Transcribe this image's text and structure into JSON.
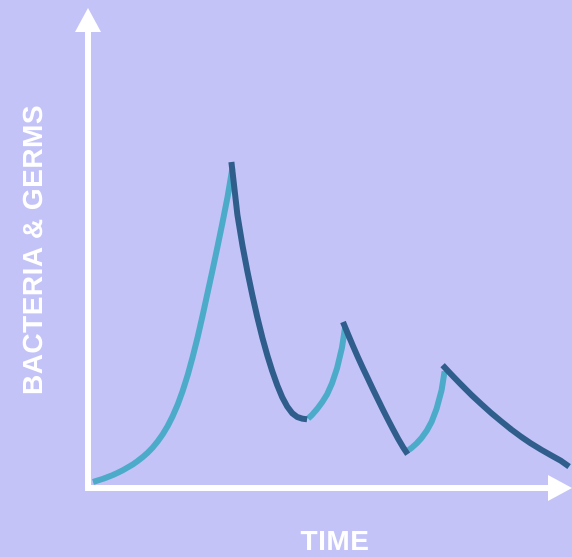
{
  "chart_data": {
    "type": "line",
    "xlabel": "TIME",
    "ylabel": "BACTERIA & GERMS",
    "grid": false,
    "legend": "none",
    "axes_color": "#ffffff",
    "background_color": "#c3c3f7",
    "series": [
      {
        "role": "growth",
        "color": "#4cabc9",
        "segments": [
          {
            "x": [
              0,
              0.5,
              1,
              1.5,
              2,
              2.5,
              3,
              3.5,
              4,
              4.5,
              5,
              5.5,
              6,
              6.5,
              7,
              7.5,
              8,
              8.5,
              9,
              9.5,
              10,
              10.5,
              11,
              11.5,
              12,
              12.5,
              13,
              13.5,
              14
            ],
            "y": [
              0.0,
              0.005,
              0.01,
              0.016,
              0.022,
              0.029,
              0.037,
              0.046,
              0.055,
              0.066,
              0.078,
              0.092,
              0.108,
              0.127,
              0.149,
              0.175,
              0.206,
              0.242,
              0.284,
              0.333,
              0.39,
              0.452,
              0.52,
              0.59,
              0.662,
              0.735,
              0.811,
              0.89,
              0.98
            ]
          },
          {
            "x": [
              21.6,
              22.0,
              22.5,
              23.0,
              23.5,
              24.0,
              24.5,
              25.0,
              25.3
            ],
            "y": [
              0.198,
              0.21,
              0.228,
              0.249,
              0.274,
              0.308,
              0.355,
              0.42,
              0.482
            ]
          },
          {
            "x": [
              31.7,
              32.0,
              32.5,
              33.0,
              33.5,
              34.0,
              34.5,
              35.0,
              35.3
            ],
            "y": [
              0.1,
              0.107,
              0.121,
              0.138,
              0.16,
              0.188,
              0.229,
              0.287,
              0.346
            ]
          }
        ]
      },
      {
        "role": "decline",
        "color": "#2f5d8c",
        "segments": [
          {
            "x": [
              13.9,
              14.5,
              15,
              15.5,
              16,
              16.5,
              17,
              17.5,
              18,
              18.5,
              19,
              19.5,
              20,
              20.5,
              21,
              21.5
            ],
            "y": [
              1.0,
              0.835,
              0.74,
              0.658,
              0.583,
              0.515,
              0.452,
              0.396,
              0.346,
              0.302,
              0.265,
              0.236,
              0.215,
              0.203,
              0.198,
              0.196
            ]
          },
          {
            "x": [
              25.1,
              25.6,
              26.1,
              26.6,
              27.1,
              27.6,
              28.1,
              28.6,
              29.1,
              29.6,
              30.1,
              30.6,
              31.1,
              31.6
            ],
            "y": [
              0.5,
              0.462,
              0.425,
              0.39,
              0.356,
              0.323,
              0.29,
              0.258,
              0.227,
              0.196,
              0.166,
              0.137,
              0.11,
              0.087
            ]
          },
          {
            "x": [
              35.1,
              36,
              37,
              38,
              39,
              40,
              41,
              42,
              43,
              44,
              45,
              46,
              47,
              47.8
            ],
            "y": [
              0.365,
              0.335,
              0.303,
              0.272,
              0.243,
              0.215,
              0.189,
              0.164,
              0.141,
              0.12,
              0.101,
              0.083,
              0.066,
              0.048
            ]
          }
        ]
      }
    ],
    "xlim": [
      0,
      50
    ],
    "ylim": [
      0,
      1.15
    ]
  }
}
